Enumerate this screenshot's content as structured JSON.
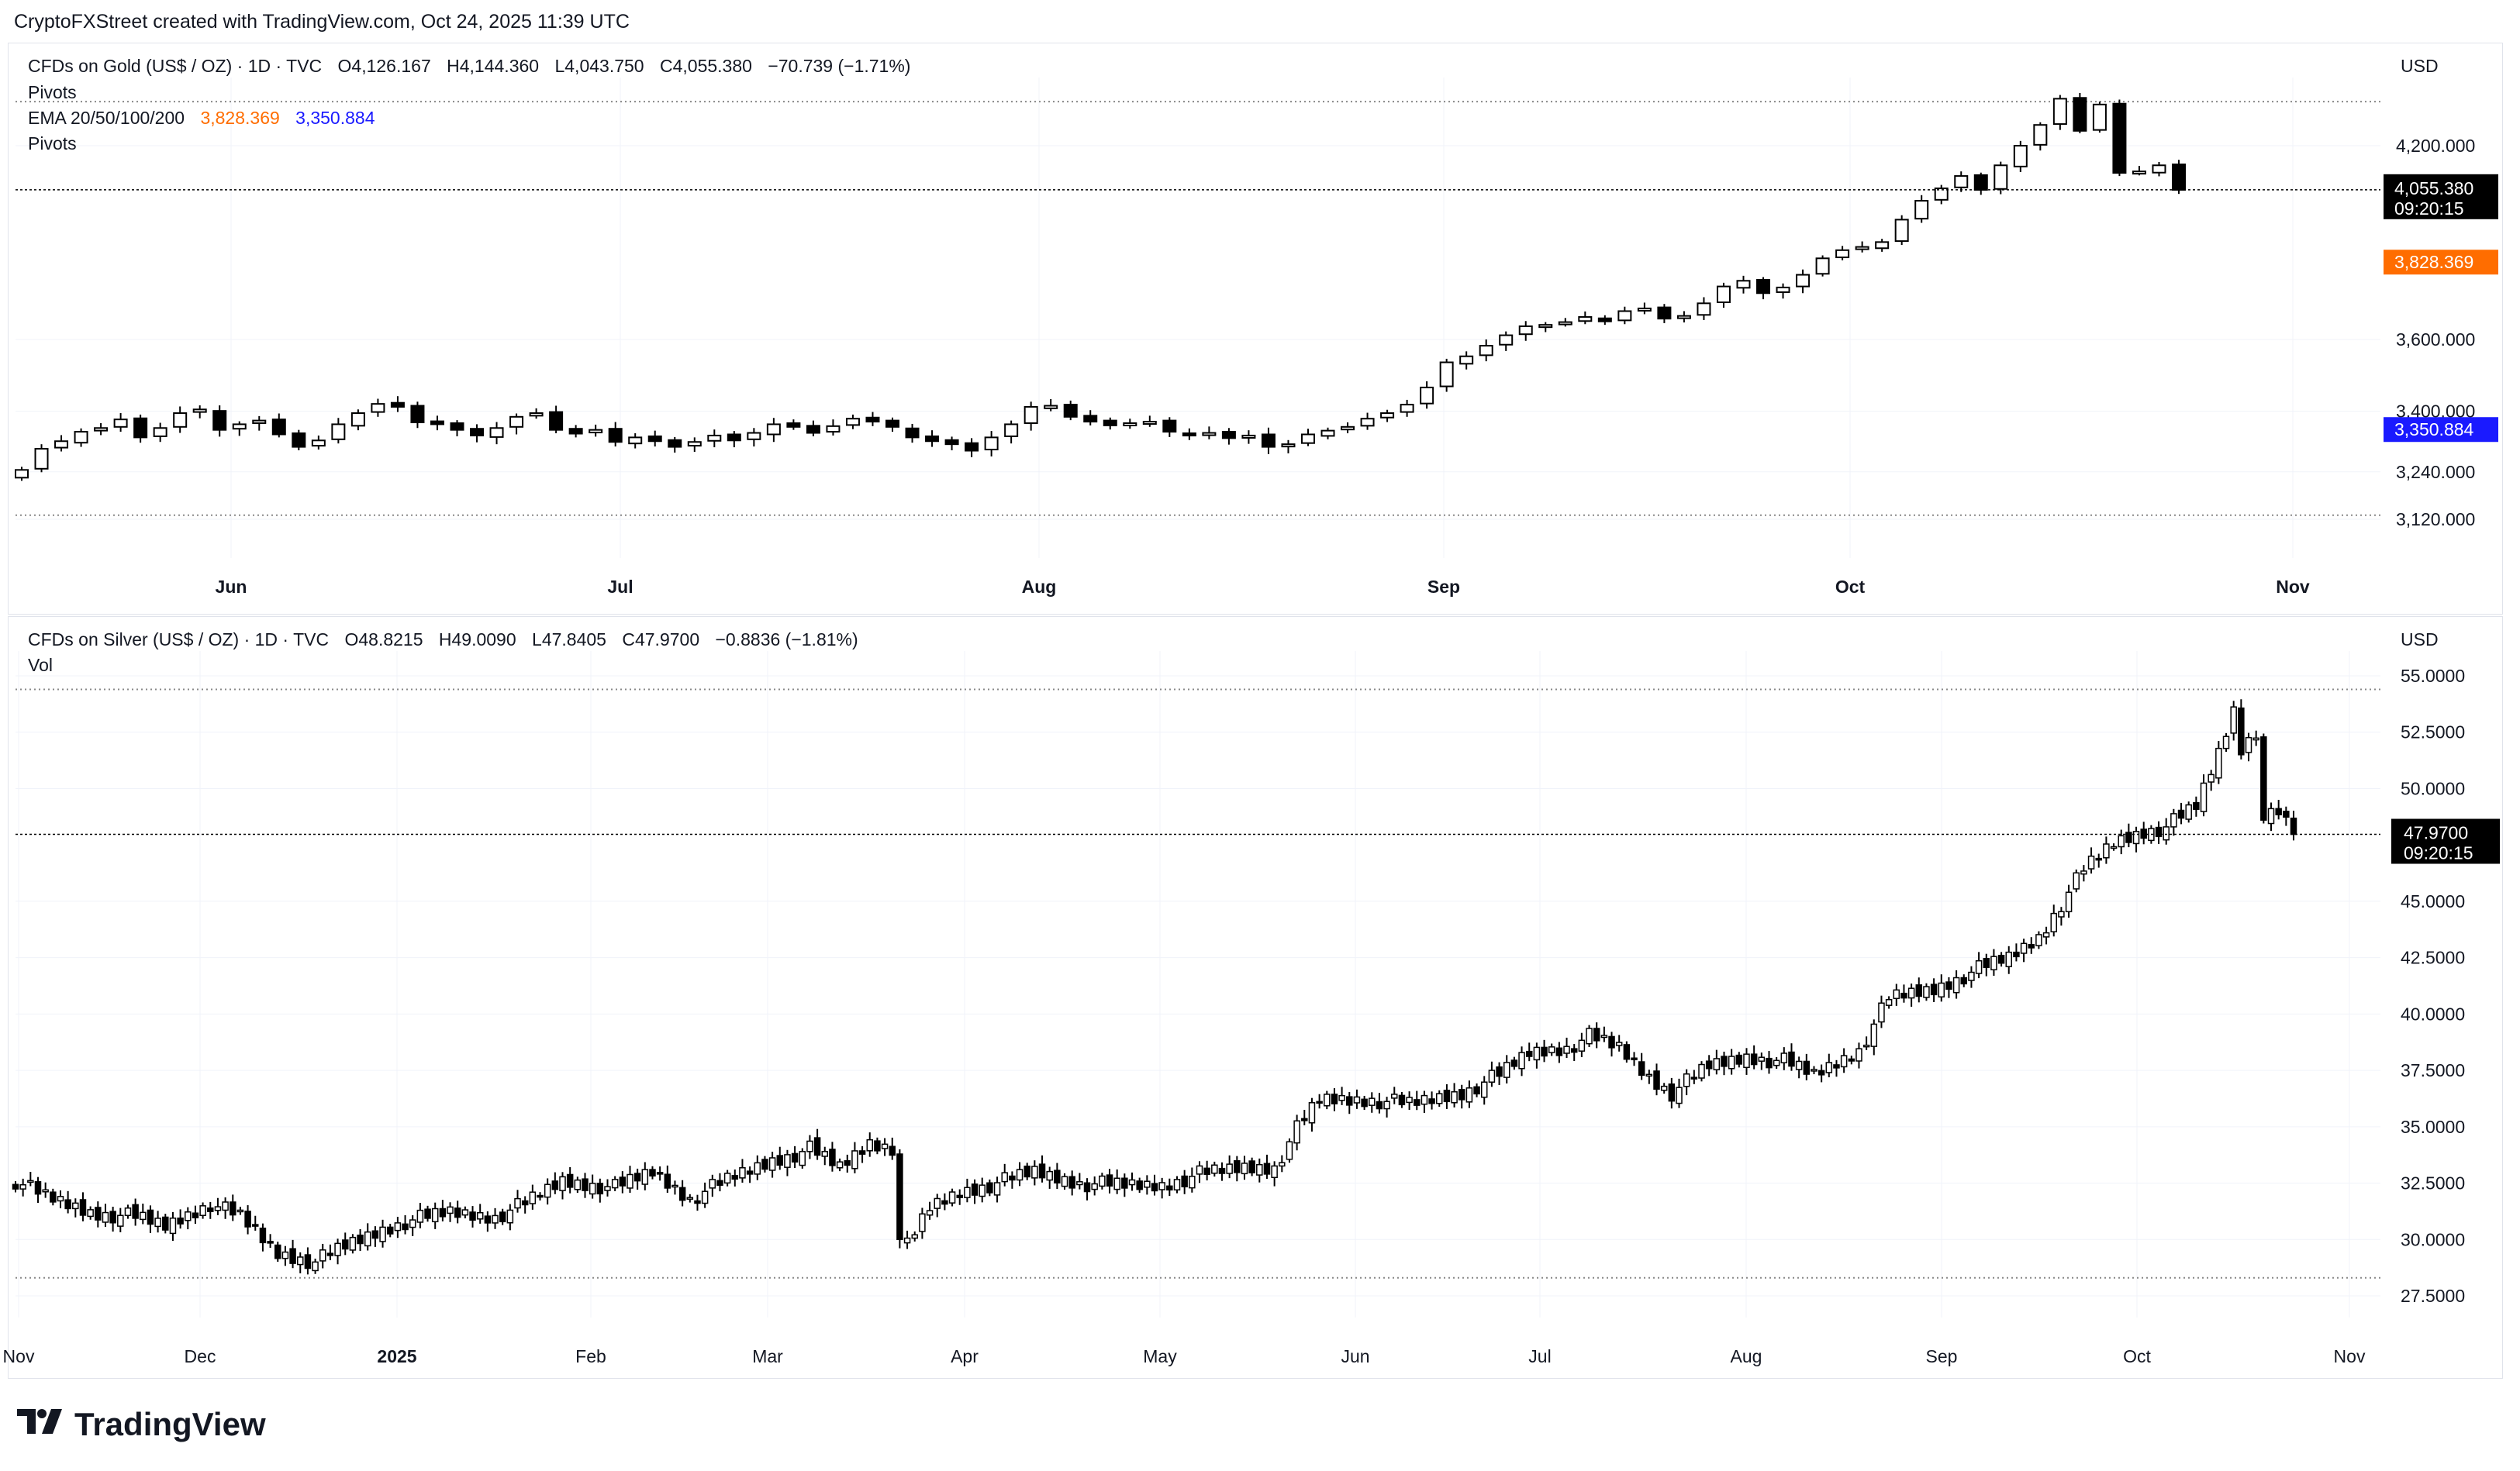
{
  "credit": "CryptoFXStreet created with TradingView.com, Oct 24, 2025 11:39 UTC",
  "brand": "TradingView",
  "colors": {
    "up_fill": "#ffffff",
    "down_fill": "#000000",
    "wick": "#000000",
    "ema_orange": "#ff6d00",
    "ema_blue": "#1a1aff",
    "grid": "#f0f3fa"
  },
  "chart_data": [
    {
      "type": "candlestick",
      "title": "CFDs on Gold (US$ / OZ) · 1D · TVC",
      "ohlc_header": {
        "o": "O4,126.167",
        "h": "H4,144.360",
        "l": "L4,043.750",
        "c": "C4,055.380",
        "chg": "−70.739 (−1.71%)"
      },
      "indicators": [
        "Pivots",
        "EMA 20/50/100/200",
        "Pivots"
      ],
      "ema_values": [
        "3,828.369",
        "3,350.884"
      ],
      "currency": "USD",
      "y_ticks": [
        "4,200.000",
        "3,600.000",
        "3,400.000",
        "3,240.000",
        "3,120.000"
      ],
      "x_ticks": [
        "Jun",
        "Jul",
        "Aug",
        "Sep",
        "Oct",
        "Nov"
      ],
      "last_price": "4,055.380",
      "countdown": "09:20:15",
      "ema20_label": "3,828.369",
      "ema_long_label": "3,350.884",
      "pivot_levels": [
        4350,
        3130
      ],
      "closes": [
        3245,
        3300,
        3320,
        3345,
        3355,
        3378,
        3330,
        3355,
        3395,
        3405,
        3350,
        3365,
        3375,
        3338,
        3305,
        3322,
        3365,
        3395,
        3420,
        3412,
        3370,
        3365,
        3350,
        3335,
        3355,
        3385,
        3395,
        3350,
        3340,
        3350,
        3318,
        3330,
        3320,
        3305,
        3318,
        3335,
        3322,
        3342,
        3365,
        3358,
        3342,
        3360,
        3380,
        3372,
        3358,
        3330,
        3320,
        3312,
        3295,
        3330,
        3365,
        3412,
        3415,
        3385,
        3372,
        3362,
        3368,
        3372,
        3345,
        3338,
        3342,
        3328,
        3335,
        3305,
        3312,
        3338,
        3348,
        3358,
        3380,
        3395,
        3418,
        3465,
        3535,
        3552,
        3582,
        3612,
        3638,
        3642,
        3650,
        3665,
        3652,
        3682,
        3690,
        3660,
        3668,
        3705,
        3755,
        3772,
        3735,
        3752,
        3790,
        3840,
        3865,
        3875,
        3890,
        3960,
        4020,
        4060,
        4100,
        4055,
        4135,
        4200,
        4270,
        4360,
        4250,
        4340,
        4110,
        4115,
        4135,
        4055
      ],
      "series_first_date": "2025-05-08"
    },
    {
      "type": "candlestick",
      "title": "CFDs on Silver (US$ / OZ) · 1D · TVC",
      "ohlc_header": {
        "o": "O48.8215",
        "h": "H49.0090",
        "l": "L47.8405",
        "c": "C47.9700",
        "chg": "−0.8836 (−1.81%)"
      },
      "indicators": [
        "Vol"
      ],
      "currency": "USD",
      "y_ticks": [
        "55.0000",
        "52.5000",
        "50.0000",
        "45.0000",
        "42.5000",
        "40.0000",
        "37.5000",
        "35.0000",
        "32.5000",
        "30.0000",
        "27.5000"
      ],
      "x_ticks": [
        "Nov",
        "Dec",
        "2025",
        "Feb",
        "Mar",
        "Apr",
        "May",
        "Jun",
        "Jul",
        "Aug",
        "Sep",
        "Oct",
        "Nov"
      ],
      "last_price": "47.9700",
      "countdown": "09:20:15",
      "pivot_levels": [
        54.4,
        28.3
      ],
      "keyframes": [
        [
          0,
          32.6
        ],
        [
          4,
          31.9
        ],
        [
          10,
          31.2
        ],
        [
          16,
          31.0
        ],
        [
          20,
          30.6
        ],
        [
          26,
          31.6
        ],
        [
          30,
          31.0
        ],
        [
          35,
          29.4
        ],
        [
          40,
          29.0
        ],
        [
          44,
          29.7
        ],
        [
          48,
          30.3
        ],
        [
          52,
          30.8
        ],
        [
          58,
          31.2
        ],
        [
          64,
          31.0
        ],
        [
          68,
          31.6
        ],
        [
          73,
          32.6
        ],
        [
          80,
          32.3
        ],
        [
          85,
          33.0
        ],
        [
          90,
          31.8
        ],
        [
          96,
          32.8
        ],
        [
          101,
          33.5
        ],
        [
          106,
          34.0
        ],
        [
          110,
          33.2
        ],
        [
          114,
          34.3
        ],
        [
          117,
          34.1
        ],
        [
          118,
          30.0
        ],
        [
          119,
          29.7
        ],
        [
          122,
          31.4
        ],
        [
          126,
          32.1
        ],
        [
          132,
          32.6
        ],
        [
          136,
          33.0
        ],
        [
          142,
          32.5
        ],
        [
          148,
          32.4
        ],
        [
          153,
          32.4
        ],
        [
          158,
          32.9
        ],
        [
          164,
          33.2
        ],
        [
          168,
          33.2
        ],
        [
          171,
          34.9
        ],
        [
          174,
          36.2
        ],
        [
          181,
          36.2
        ],
        [
          186,
          36.0
        ],
        [
          193,
          36.5
        ],
        [
          198,
          37.3
        ],
        [
          202,
          38.3
        ],
        [
          207,
          38.5
        ],
        [
          210,
          39.0
        ],
        [
          214,
          38.5
        ],
        [
          218,
          37.2
        ],
        [
          221,
          36.5
        ],
        [
          226,
          37.7
        ],
        [
          231,
          38.1
        ],
        [
          236,
          37.9
        ],
        [
          240,
          37.3
        ],
        [
          246,
          38.4
        ],
        [
          250,
          40.7
        ],
        [
          256,
          41.1
        ],
        [
          262,
          42.0
        ],
        [
          266,
          42.5
        ],
        [
          270,
          43.4
        ],
        [
          276,
          46.4
        ],
        [
          280,
          47.6
        ],
        [
          284,
          48.1
        ],
        [
          287,
          48.3
        ],
        [
          291,
          49.2
        ],
        [
          294,
          51.6
        ],
        [
          296,
          53.5
        ],
        [
          297,
          51.8
        ],
        [
          299,
          52.6
        ],
        [
          300,
          48.6
        ],
        [
          302,
          48.9
        ],
        [
          304,
          47.97
        ]
      ],
      "series_first_date": "2024-10-24"
    }
  ]
}
